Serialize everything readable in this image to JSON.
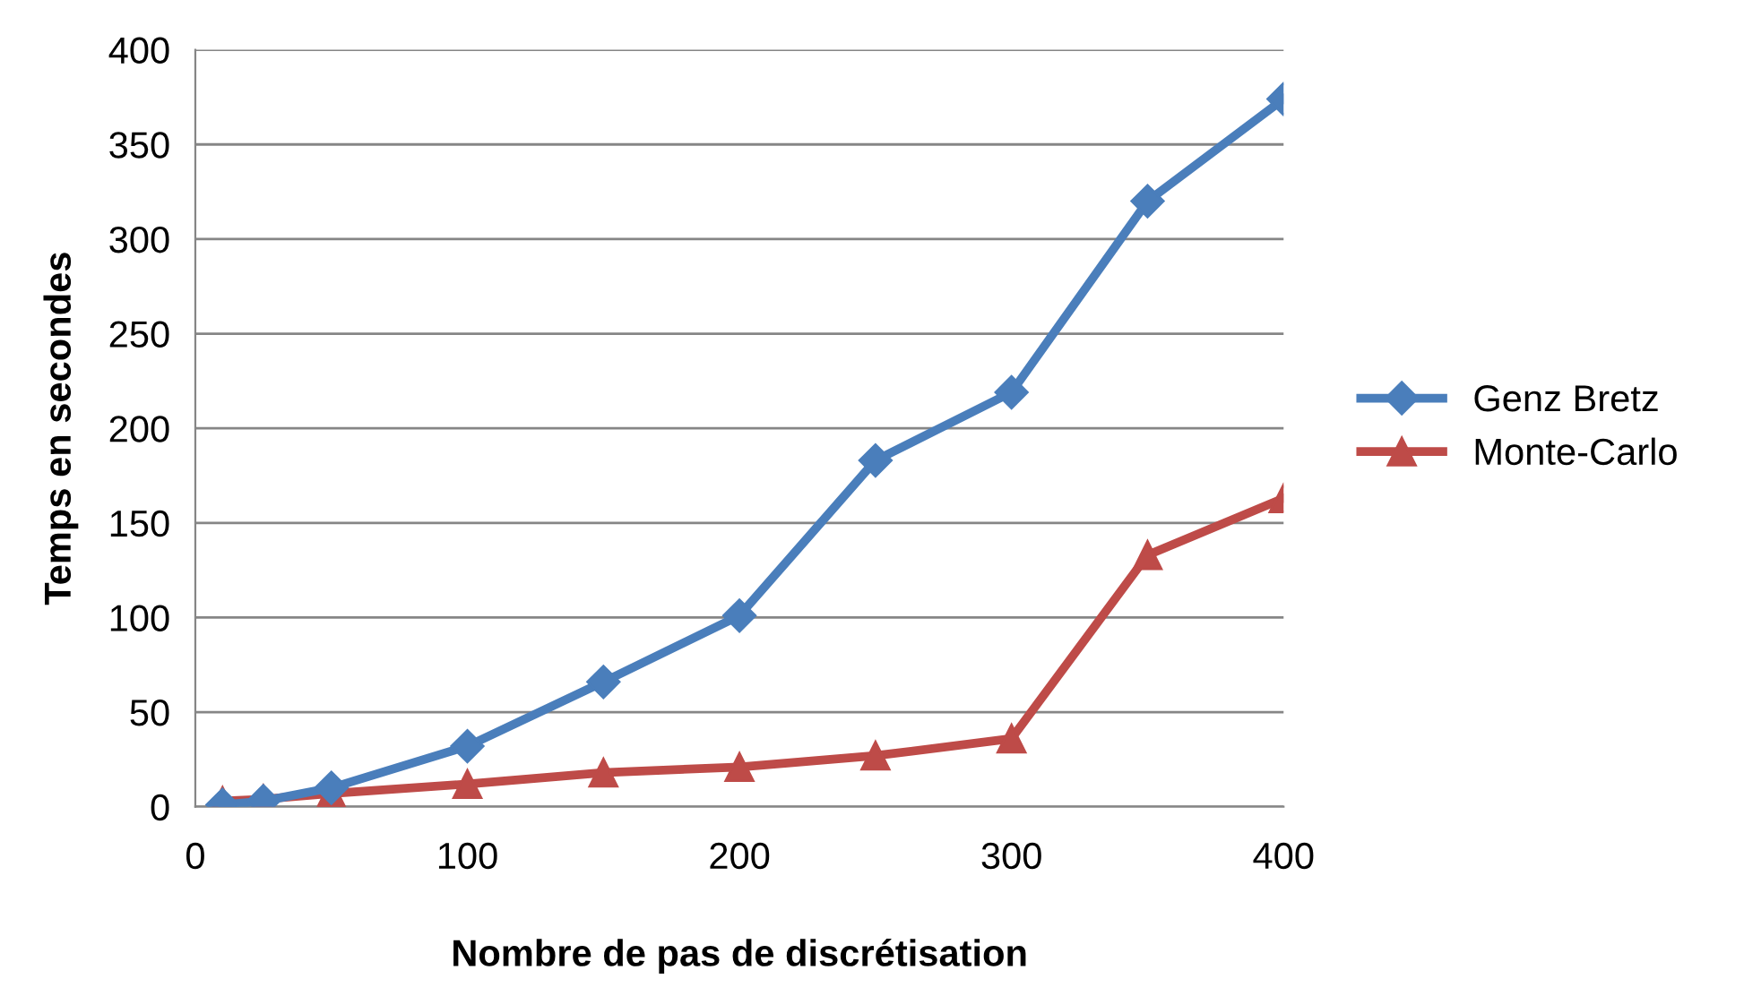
{
  "chart_data": {
    "type": "line",
    "xlabel": "Nombre de pas de discrétisation",
    "ylabel": "Temps en secondes",
    "series": [
      {
        "name": "Genz Bretz",
        "color": "#4a7ebb",
        "marker": "diamond",
        "x": [
          10,
          25,
          50,
          100,
          150,
          200,
          250,
          300,
          350,
          400
        ],
        "values": [
          1,
          3,
          10,
          32,
          66,
          101,
          183,
          219,
          320,
          374
        ]
      },
      {
        "name": "Monte-Carlo",
        "color": "#be4b48",
        "marker": "triangle",
        "x": [
          10,
          25,
          50,
          100,
          150,
          200,
          250,
          300,
          350,
          400
        ],
        "values": [
          3,
          4,
          7,
          12,
          18,
          21,
          27,
          36,
          133,
          163
        ]
      }
    ],
    "xlim": [
      0,
      400
    ],
    "xticks": [
      0,
      100,
      200,
      300,
      400
    ],
    "ylim": [
      0,
      400
    ],
    "yticks": [
      0,
      50,
      100,
      150,
      200,
      250,
      300,
      350,
      400
    ],
    "grid": "y",
    "legend": "right",
    "line_style": "solid"
  }
}
